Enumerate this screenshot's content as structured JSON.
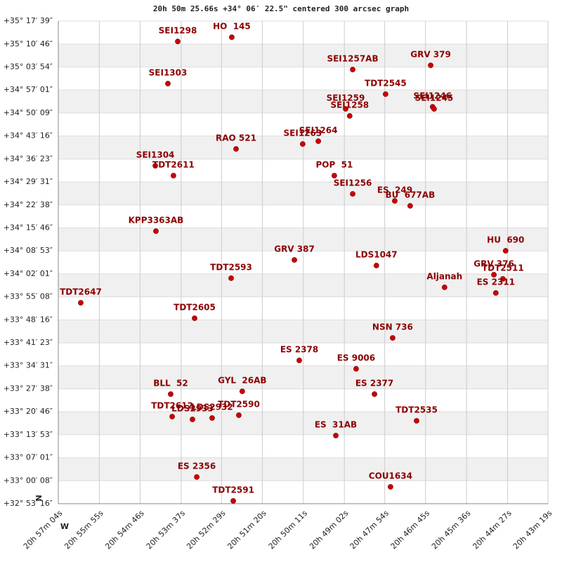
{
  "chart_data": {
    "type": "scatter",
    "title": "20h 50m 25.66s +34° 06′ 22.5\" centered 300 arcsec graph",
    "x_reversed": true,
    "grid": true,
    "marker_color": "#cc0000",
    "label_color": "#8b0000",
    "band_color": "#f0f0f0",
    "north_label": "N",
    "west_label": "W",
    "xlim": [
      20.9511,
      20.7219
    ],
    "xticks": [
      {
        "value": 20.9511,
        "label": "20h 57m 04s"
      },
      {
        "value": 20.9319,
        "label": "20h 55m 55s"
      },
      {
        "value": 20.9128,
        "label": "20h 54m 46s"
      },
      {
        "value": 20.8936,
        "label": "20h 53m 37s"
      },
      {
        "value": 20.8747,
        "label": "20h 52m 29s"
      },
      {
        "value": 20.8556,
        "label": "20h 51m 20s"
      },
      {
        "value": 20.8364,
        "label": "20h 50m 11s"
      },
      {
        "value": 20.8172,
        "label": "20h 49m 02s"
      },
      {
        "value": 20.7983,
        "label": "20h 47m 54s"
      },
      {
        "value": 20.7792,
        "label": "20h 46m 45s"
      },
      {
        "value": 20.76,
        "label": "20h 45m 36s"
      },
      {
        "value": 20.7408,
        "label": "20h 44m 27s"
      },
      {
        "value": 20.7219,
        "label": "20h 43m 19s"
      }
    ],
    "ylim": [
      32.8878,
      35.2942
    ],
    "yticks": [
      {
        "value": 35.2942,
        "label": "+35° 17′ 39″"
      },
      {
        "value": 35.1794,
        "label": "+35° 10′ 46″"
      },
      {
        "value": 35.065,
        "label": "+35° 03′ 54″"
      },
      {
        "value": 34.9503,
        "label": "+34° 57′ 01″"
      },
      {
        "value": 34.8358,
        "label": "+34° 50′ 09″"
      },
      {
        "value": 34.7211,
        "label": "+34° 43′ 16″"
      },
      {
        "value": 34.6064,
        "label": "+34° 36′ 23″"
      },
      {
        "value": 34.4919,
        "label": "+34° 29′ 31″"
      },
      {
        "value": 34.3772,
        "label": "+34° 22′ 38″"
      },
      {
        "value": 34.2628,
        "label": "+34° 15′ 46″"
      },
      {
        "value": 34.1481,
        "label": "+34° 08′ 53″"
      },
      {
        "value": 34.0336,
        "label": "+34° 02′ 01″"
      },
      {
        "value": 33.9189,
        "label": "+33° 55′ 08″"
      },
      {
        "value": 33.8044,
        "label": "+33° 48′ 16″"
      },
      {
        "value": 33.6897,
        "label": "+33° 41′ 23″"
      },
      {
        "value": 33.5753,
        "label": "+33° 34′ 31″"
      },
      {
        "value": 33.4606,
        "label": "+33° 27′ 38″"
      },
      {
        "value": 33.3461,
        "label": "+33° 20′ 46″"
      },
      {
        "value": 33.2314,
        "label": "+33° 13′ 53″"
      },
      {
        "value": 33.1169,
        "label": "+33° 07′ 01″"
      },
      {
        "value": 33.0022,
        "label": "+33° 00′ 08″"
      },
      {
        "value": 32.8878,
        "label": "+32° 53′ 16″"
      }
    ],
    "labels": [
      "SEI1298",
      "HO  145",
      "SEI1257AB",
      "GRV 379",
      "SEI1303",
      "TDT2545",
      "SEI1246",
      "SEI1245",
      "SEI1259",
      "SEI1258",
      "SEI1263",
      "SEI1264",
      "RAO 521",
      "SEI1304",
      "TDT2611",
      "POP  51",
      "SEI1256",
      "ES  249",
      "BU  677AB",
      "KPP3363AB",
      "HU  690",
      "GRV 387",
      "LDS1047",
      "GRV 376",
      "TDT2511",
      "TDT2593",
      "Aljanah",
      "ES 2311",
      "TDT2647",
      "TDT2605",
      "NSN 736",
      "ES 2378",
      "ES 9006",
      "BLL  52",
      "GYL  26AB",
      "ES 2377",
      "TDT2612",
      "LDS2933",
      "LDS2932",
      "TDT2590",
      "TDT2535",
      "ES  31AB",
      "ES 2356",
      "COU1634",
      "TDT2591"
    ],
    "x": [
      20.8952,
      20.8699,
      20.8133,
      20.7768,
      20.8998,
      20.7979,
      20.7759,
      20.7752,
      20.8166,
      20.8147,
      20.8367,
      20.8294,
      20.8679,
      20.9057,
      20.8972,
      20.8219,
      20.8133,
      20.7936,
      20.7864,
      20.9054,
      20.7417,
      20.8406,
      20.8022,
      20.7472,
      20.743,
      20.8702,
      20.7703,
      20.7463,
      20.9406,
      20.8873,
      20.7946,
      20.8383,
      20.8117,
      20.8985,
      20.865,
      20.8031,
      20.8978,
      20.8883,
      20.8791,
      20.8666,
      20.7834,
      20.8212,
      20.8863,
      20.7956,
      20.8692
    ],
    "values": [
      35.1926,
      35.2136,
      35.0525,
      35.0735,
      34.9824,
      34.9299,
      34.8668,
      34.8563,
      34.8563,
      34.8213,
      34.6812,
      34.6952,
      34.6567,
      34.5726,
      34.5235,
      34.5235,
      34.4325,
      34.3974,
      34.3729,
      34.2468,
      34.1487,
      34.1032,
      34.0752,
      34.0296,
      34.0086,
      34.0121,
      33.9666,
      33.9385,
      33.8895,
      33.8124,
      33.7143,
      33.6023,
      33.5602,
      33.4341,
      33.4481,
      33.4341,
      33.322,
      33.308,
      33.315,
      33.329,
      33.301,
      33.2274,
      33.0208,
      32.9717,
      32.9017
    ]
  }
}
